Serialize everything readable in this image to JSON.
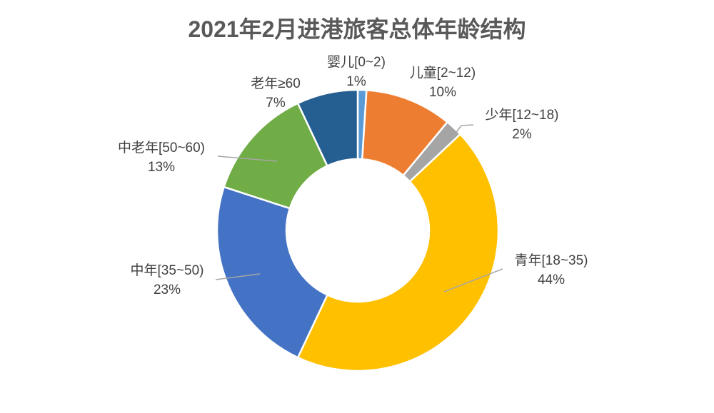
{
  "page": {
    "background": "#FFFFFF"
  },
  "chart_data": {
    "type": "pie",
    "subtype": "doughnut",
    "title": "2021年2月进港旅客总体年龄结构",
    "title_color": "#595959",
    "categories": [
      "婴儿[0~2)",
      "儿童[2~12)",
      "少年[12~18)",
      "青年[18~35)",
      "中年[35~50)",
      "中老年[50~60)",
      "老年≥60"
    ],
    "values": [
      1,
      10,
      2,
      44,
      23,
      13,
      7
    ],
    "unit": "%",
    "colors": [
      "#5B9BD5",
      "#ED7D31",
      "#A5A5A5",
      "#FFC000",
      "#4472C4",
      "#70AD47",
      "#255E91"
    ],
    "slice_border_color": "#FFFFFF",
    "leader_line_color": "#A6A6A6",
    "label_color": "#404040",
    "start_angle_deg": 0,
    "direction": "clockwise",
    "inner_radius_ratio": 0.51,
    "legend": "none",
    "data_label_format": "category newline percent"
  }
}
